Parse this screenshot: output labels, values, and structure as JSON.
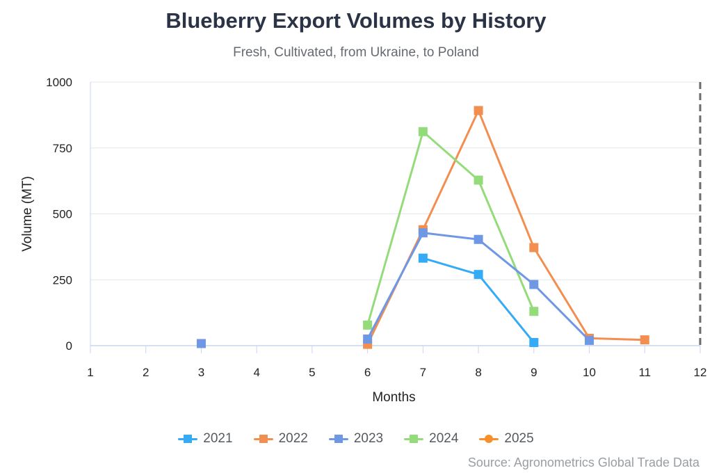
{
  "header": {
    "title": "Blueberry Export Volumes by History",
    "subtitle": "Fresh, Cultivated, from Ukraine, to Poland"
  },
  "footer": {
    "source": "Source: Agronometrics Global Trade Data"
  },
  "chart_data": {
    "type": "line",
    "title": "Blueberry Export Volumes by History",
    "subtitle": "Fresh, Cultivated, from Ukraine, to Poland",
    "xlabel": "Months",
    "ylabel": "Volume (MT)",
    "xlim": [
      1,
      12
    ],
    "ylim": [
      0,
      1000
    ],
    "x_ticks": [
      "1",
      "2",
      "3",
      "4",
      "5",
      "6",
      "7",
      "8",
      "9",
      "10",
      "11",
      "12"
    ],
    "y_ticks": [
      "0",
      "250",
      "500",
      "750",
      "1000"
    ],
    "grid": "horizontal",
    "legend_position": "bottom",
    "series": [
      {
        "name": "2021",
        "color": "#35aaf6",
        "points": [
          [
            7,
            332
          ],
          [
            8,
            270
          ],
          [
            9,
            12
          ]
        ]
      },
      {
        "name": "2022",
        "color": "#f28e4f",
        "points": [
          [
            6,
            5
          ],
          [
            7,
            440
          ],
          [
            8,
            892
          ],
          [
            9,
            372
          ],
          [
            10,
            28
          ],
          [
            11,
            22
          ]
        ]
      },
      {
        "name": "2024",
        "color": "#94dc7a",
        "points": [
          [
            6,
            78
          ],
          [
            7,
            812
          ],
          [
            8,
            628
          ],
          [
            9,
            130
          ]
        ]
      },
      {
        "name": "2023",
        "color": "#6f98e4",
        "points": [
          [
            3,
            8
          ],
          [
            6,
            25
          ],
          [
            7,
            428
          ],
          [
            8,
            403
          ],
          [
            9,
            232
          ],
          [
            10,
            20
          ]
        ]
      },
      {
        "name": "2025",
        "color": "#f7902a",
        "points": []
      }
    ],
    "legend_order": [
      "2021",
      "2022",
      "2023",
      "2024",
      "2025"
    ],
    "current_month_marker": 12
  }
}
